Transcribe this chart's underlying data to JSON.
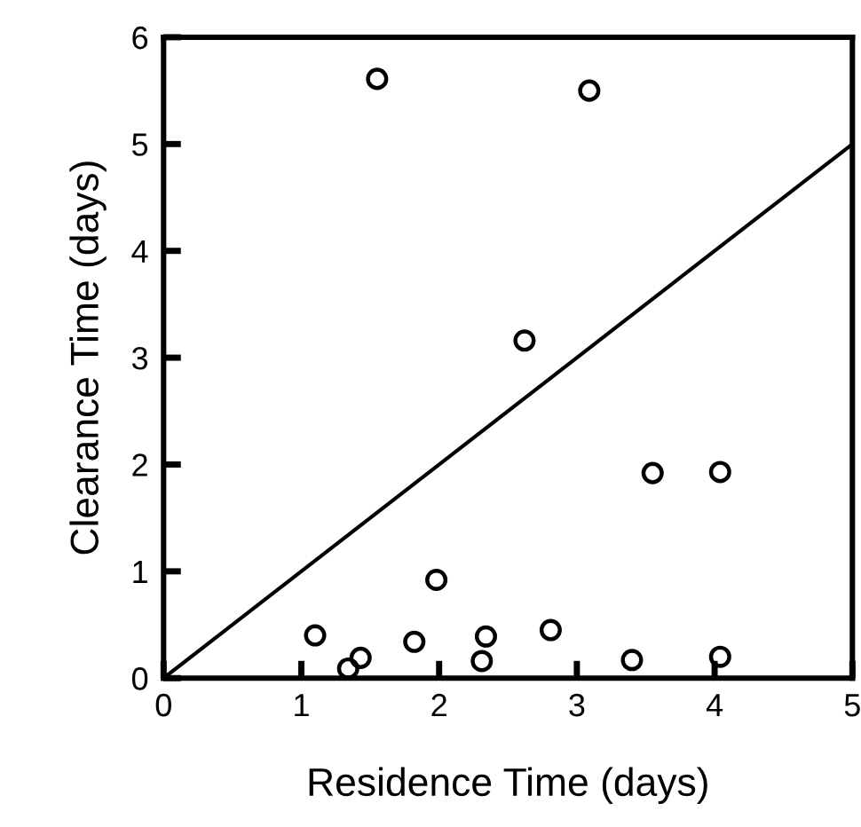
{
  "chart_data": {
    "type": "scatter",
    "xlabel": "Residence Time (days)",
    "ylabel": "Clearance Time (days)",
    "xlim": [
      0,
      5
    ],
    "ylim": [
      0,
      6
    ],
    "xticks": [
      0,
      1,
      2,
      3,
      4,
      5
    ],
    "yticks": [
      0,
      1,
      2,
      3,
      4,
      5,
      6
    ],
    "grid": false,
    "legend": false,
    "marker": "circle",
    "series": [
      {
        "color": "#000000",
        "x": [
          1.1,
          1.34,
          1.43,
          1.82,
          1.98,
          2.34,
          2.31,
          2.81,
          3.4,
          4.04,
          3.55,
          4.04,
          1.55,
          3.09,
          2.62
        ],
        "values": [
          0.4,
          0.09,
          0.19,
          0.34,
          0.92,
          0.39,
          0.16,
          0.45,
          0.17,
          0.2,
          1.92,
          1.93,
          5.61,
          5.5,
          3.16
        ]
      },
      {
        "type": "line",
        "color": "#000000",
        "x": [
          0,
          5
        ],
        "values": [
          0,
          5
        ],
        "marker": "none",
        "line_style": "solid"
      }
    ]
  }
}
